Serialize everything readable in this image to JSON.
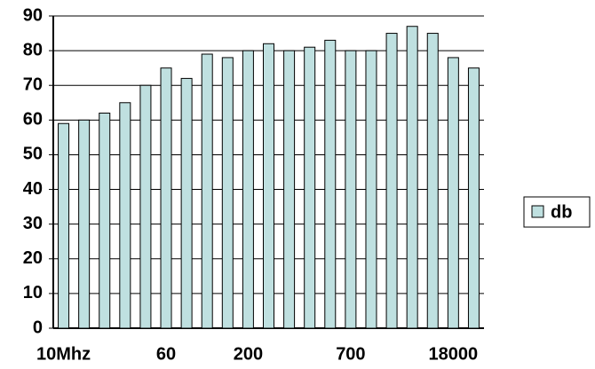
{
  "chart_data": {
    "type": "bar",
    "categories": [
      "10Mhz",
      null,
      null,
      null,
      null,
      "60",
      null,
      null,
      null,
      "200",
      null,
      null,
      null,
      null,
      "700",
      null,
      null,
      null,
      null,
      "18000",
      null
    ],
    "series": [
      {
        "name": "db",
        "color": "#bfe0e0",
        "values": [
          59,
          60,
          62,
          65,
          70,
          75,
          72,
          79,
          78,
          80,
          82,
          80,
          81,
          83,
          80,
          80,
          85,
          87,
          85,
          78,
          75
        ]
      }
    ],
    "ylim": [
      0,
      90
    ],
    "yticks": [
      0,
      10,
      20,
      30,
      40,
      50,
      60,
      70,
      80,
      90
    ],
    "grid": true,
    "legend": "right"
  }
}
